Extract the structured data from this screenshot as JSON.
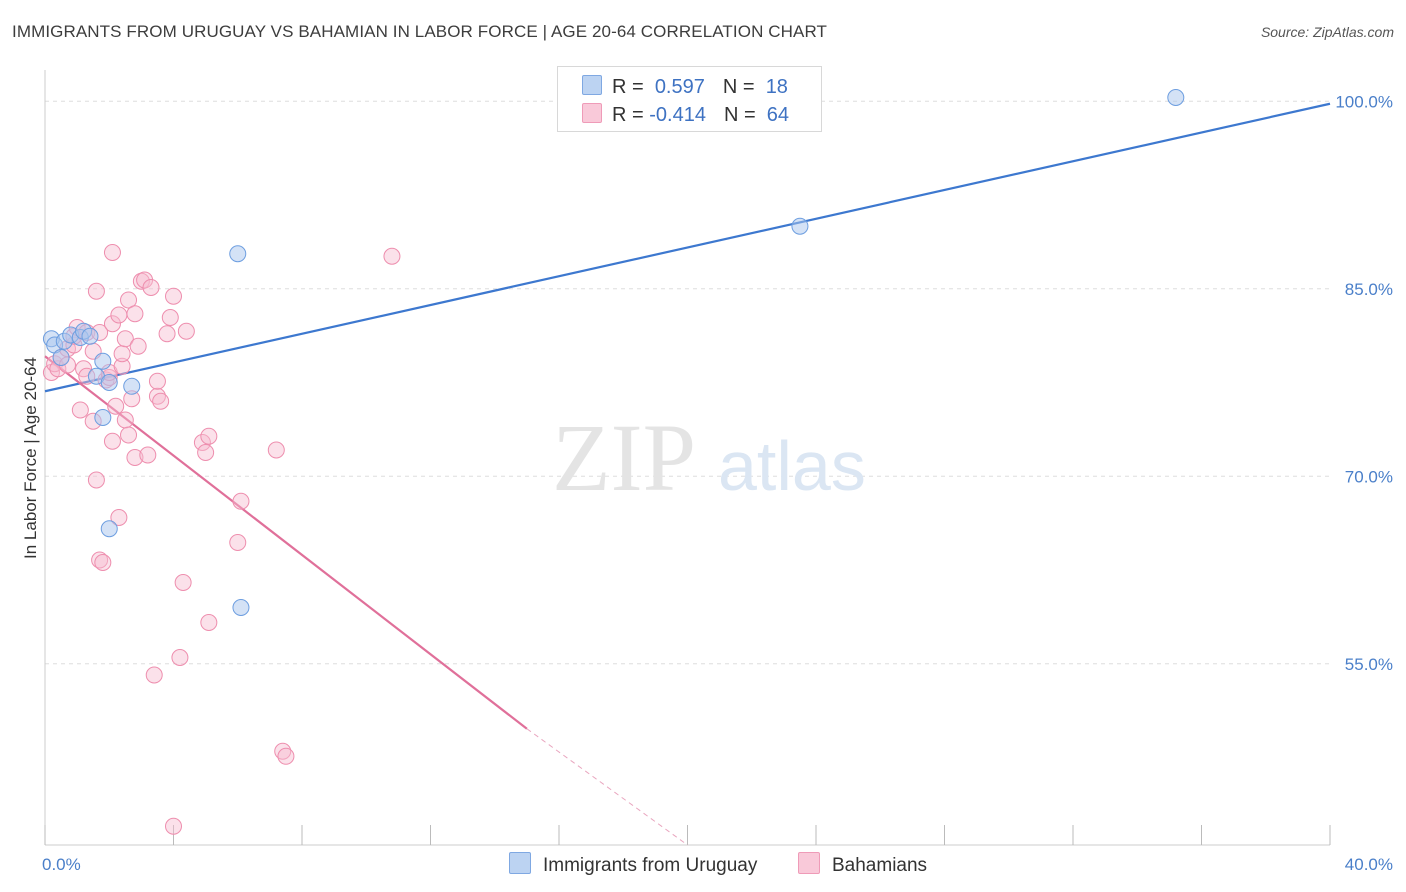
{
  "title": "IMMIGRANTS FROM URUGUAY VS BAHAMIAN IN LABOR FORCE | AGE 20-64 CORRELATION CHART",
  "source": "Source: ZipAtlas.com",
  "watermark": {
    "zip": "ZIP",
    "atlas": "atlas"
  },
  "legend": {
    "rows": [
      {
        "r_label": "R =",
        "r_value": "0.597",
        "n_label": "N =",
        "n_value": "18"
      },
      {
        "r_label": "R =",
        "r_value": "-0.414",
        "n_label": "N =",
        "n_value": "64"
      }
    ]
  },
  "bottom_legend": {
    "series1": "Immigrants from Uruguay",
    "series2": "Bahamians"
  },
  "colors": {
    "blue_fill": "#a9c6ee",
    "blue_stroke": "#6d9ee0",
    "blue_line": "#3d78cf",
    "pink_fill": "#f6bcd0",
    "pink_stroke": "#ee8eae",
    "pink_line": "#e0709a",
    "tick_text": "#4a7fc9",
    "grid": "#dedede"
  },
  "chart_data": {
    "type": "scatter",
    "title": "IMMIGRANTS FROM URUGUAY VS BAHAMIAN IN LABOR FORCE | AGE 20-64 CORRELATION CHART",
    "xlabel": "",
    "ylabel": "In Labor Force | Age 20-64",
    "xlim": [
      0,
      40
    ],
    "ylim": [
      40.5,
      102.5
    ],
    "x_tick_labels": [
      "0.0%",
      "40.0%"
    ],
    "y_ticks": [
      55,
      70,
      85,
      100
    ],
    "y_tick_labels": [
      "55.0%",
      "70.0%",
      "85.0%",
      "100.0%"
    ],
    "series": [
      {
        "name": "Immigrants from Uruguay",
        "points": [
          [
            0.2,
            81.0
          ],
          [
            0.3,
            80.5
          ],
          [
            0.5,
            79.5
          ],
          [
            0.6,
            80.8
          ],
          [
            0.8,
            81.3
          ],
          [
            1.1,
            81.1
          ],
          [
            1.2,
            81.6
          ],
          [
            1.4,
            81.2
          ],
          [
            1.6,
            78.0
          ],
          [
            1.8,
            79.2
          ],
          [
            1.8,
            74.7
          ],
          [
            2.0,
            77.5
          ],
          [
            2.0,
            65.8
          ],
          [
            2.7,
            77.2
          ],
          [
            6.0,
            87.8
          ],
          [
            6.1,
            59.5
          ],
          [
            23.5,
            90.0
          ],
          [
            35.2,
            100.3
          ]
        ],
        "trend": {
          "x": [
            0,
            40
          ],
          "y": [
            76.8,
            99.8
          ]
        }
      },
      {
        "name": "Bahamians",
        "points": [
          [
            0.2,
            78.3
          ],
          [
            0.3,
            79.0
          ],
          [
            0.4,
            78.6
          ],
          [
            0.5,
            79.5
          ],
          [
            0.7,
            80.2
          ],
          [
            0.7,
            78.9
          ],
          [
            0.9,
            80.5
          ],
          [
            0.9,
            81.2
          ],
          [
            1.0,
            81.9
          ],
          [
            1.1,
            75.3
          ],
          [
            1.2,
            78.6
          ],
          [
            1.3,
            78.0
          ],
          [
            1.3,
            81.5
          ],
          [
            1.5,
            80.0
          ],
          [
            1.5,
            74.4
          ],
          [
            1.6,
            84.8
          ],
          [
            1.6,
            69.7
          ],
          [
            1.7,
            81.5
          ],
          [
            1.7,
            63.3
          ],
          [
            1.8,
            63.1
          ],
          [
            1.9,
            77.7
          ],
          [
            2.0,
            77.9
          ],
          [
            2.0,
            78.3
          ],
          [
            2.1,
            82.2
          ],
          [
            2.1,
            87.9
          ],
          [
            2.2,
            75.6
          ],
          [
            2.3,
            82.9
          ],
          [
            2.3,
            66.7
          ],
          [
            2.4,
            78.8
          ],
          [
            2.4,
            79.8
          ],
          [
            2.5,
            81.0
          ],
          [
            2.5,
            74.5
          ],
          [
            2.6,
            73.3
          ],
          [
            2.6,
            84.1
          ],
          [
            2.7,
            76.2
          ],
          [
            2.8,
            71.5
          ],
          [
            2.8,
            83.0
          ],
          [
            2.9,
            80.4
          ],
          [
            3.0,
            85.6
          ],
          [
            3.1,
            85.7
          ],
          [
            3.2,
            71.7
          ],
          [
            3.3,
            85.1
          ],
          [
            3.4,
            54.1
          ],
          [
            3.5,
            76.4
          ],
          [
            3.5,
            77.6
          ],
          [
            3.8,
            81.4
          ],
          [
            3.9,
            82.7
          ],
          [
            4.0,
            84.4
          ],
          [
            4.0,
            42.0
          ],
          [
            4.2,
            55.5
          ],
          [
            4.3,
            61.5
          ],
          [
            4.4,
            81.6
          ],
          [
            4.9,
            72.7
          ],
          [
            5.0,
            71.9
          ],
          [
            5.1,
            58.3
          ],
          [
            5.1,
            73.2
          ],
          [
            6.0,
            64.7
          ],
          [
            6.1,
            68.0
          ],
          [
            7.2,
            72.1
          ],
          [
            7.4,
            48.0
          ],
          [
            7.5,
            47.6
          ],
          [
            10.8,
            87.6
          ],
          [
            3.6,
            76.0
          ],
          [
            2.1,
            72.8
          ]
        ],
        "trend": {
          "x": [
            0,
            15
          ],
          "y": [
            79.6,
            49.8
          ]
        },
        "trend_dashed": {
          "x": [
            15,
            20
          ],
          "y": [
            49.8,
            40.5
          ]
        }
      }
    ]
  }
}
